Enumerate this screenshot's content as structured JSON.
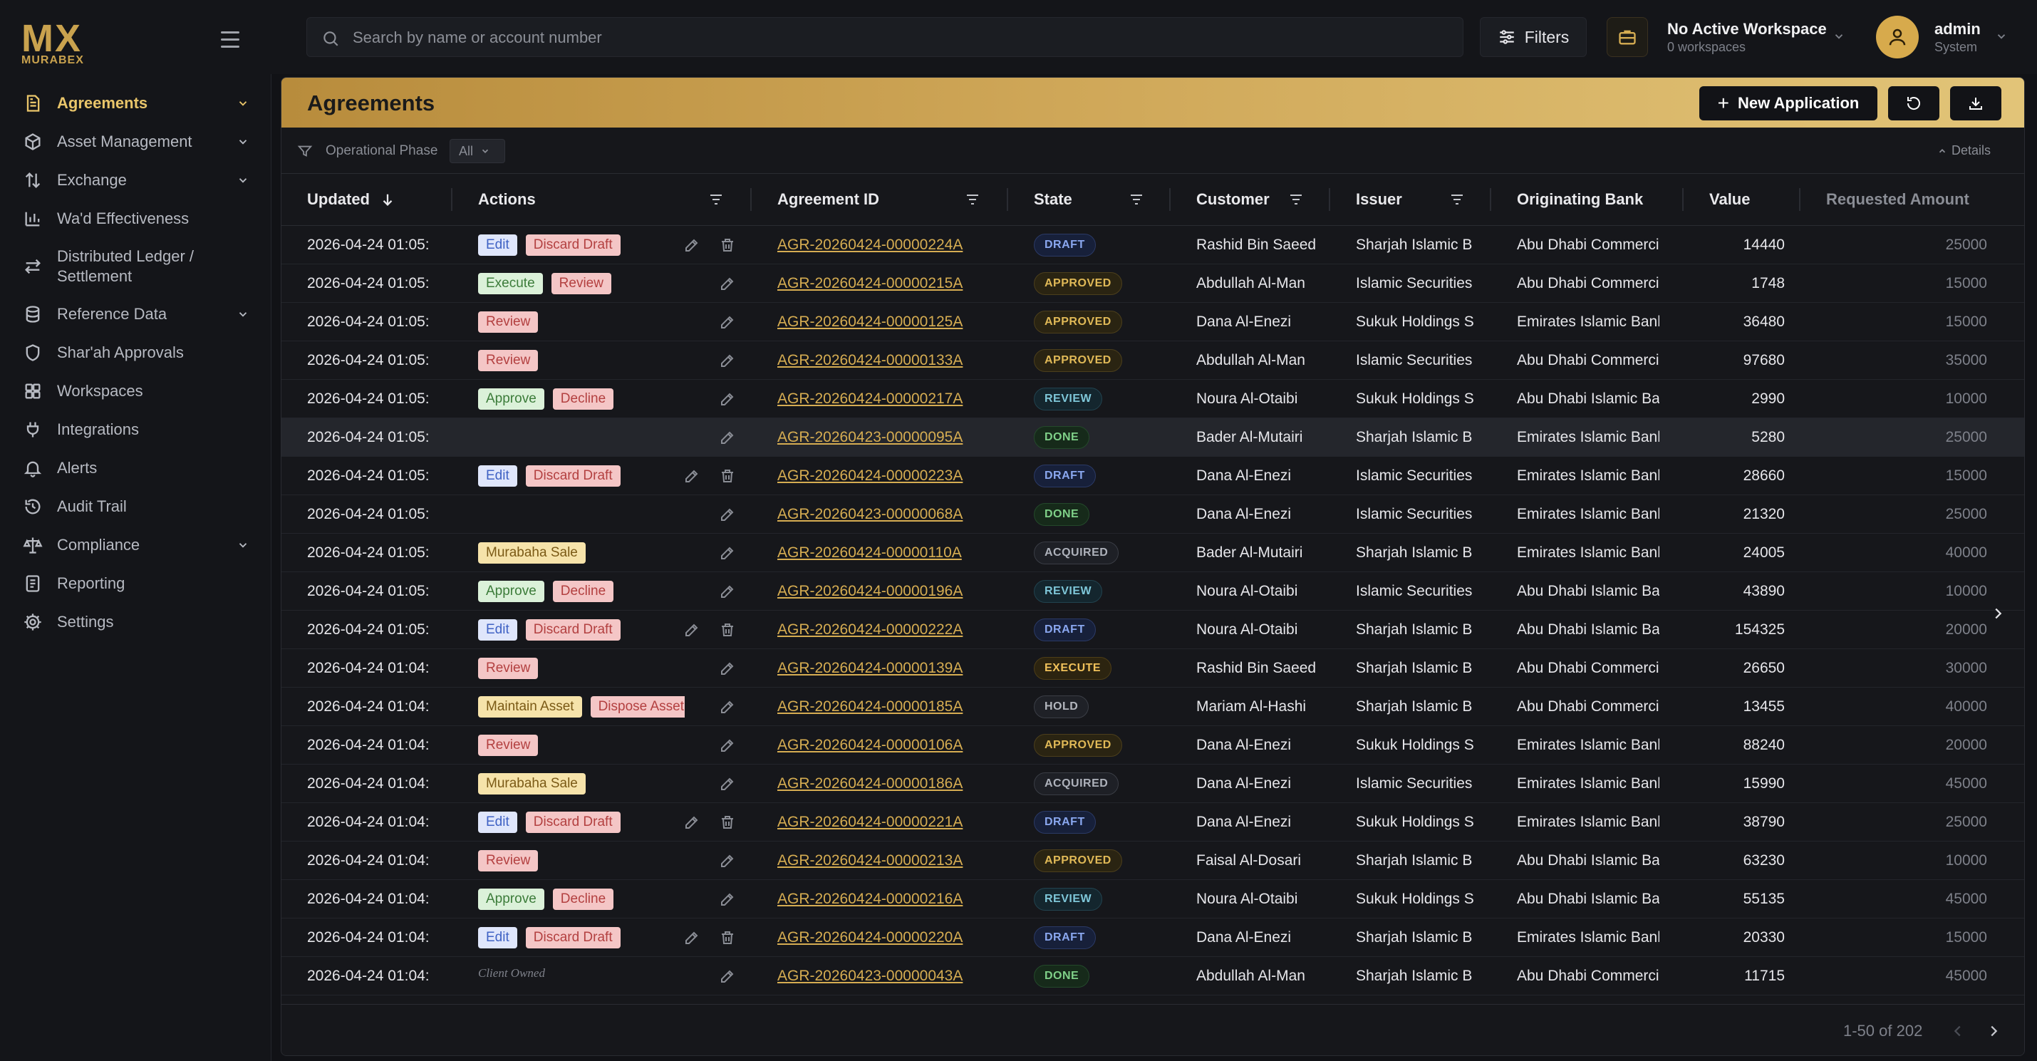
{
  "brand": {
    "logo_main": "MX",
    "logo_sub": "MURABEX"
  },
  "sidebar": {
    "items": [
      {
        "label": "Agreements",
        "icon": "document-icon",
        "active": true,
        "chevron": true
      },
      {
        "label": "Asset Management",
        "icon": "cube-icon",
        "chevron": true
      },
      {
        "label": "Exchange",
        "icon": "swap-vertical-icon",
        "chevron": true
      },
      {
        "label": "Wa'd Effectiveness",
        "icon": "bar-chart-icon"
      },
      {
        "label": "Distributed Ledger / Settlement",
        "icon": "arrows-left-right-icon",
        "tall": true
      },
      {
        "label": "Reference Data",
        "icon": "database-icon",
        "chevron": true
      },
      {
        "label": "Shar'ah Approvals",
        "icon": "shield-icon"
      },
      {
        "label": "Workspaces",
        "icon": "grid-icon"
      },
      {
        "label": "Integrations",
        "icon": "plug-icon"
      },
      {
        "label": "Alerts",
        "icon": "bell-icon"
      },
      {
        "label": "Audit Trail",
        "icon": "history-icon"
      },
      {
        "label": "Compliance",
        "icon": "scale-icon",
        "chevron": true
      },
      {
        "label": "Reporting",
        "icon": "report-icon"
      },
      {
        "label": "Settings",
        "icon": "gear-icon"
      }
    ]
  },
  "topbar": {
    "search_placeholder": "Search by name or account number",
    "filters_label": "Filters",
    "workspace_title": "No Active Workspace",
    "workspace_sub": "0 workspaces",
    "user_name": "admin",
    "user_role": "System"
  },
  "panel": {
    "title": "Agreements",
    "new_button": "New Application",
    "filter_label": "Operational Phase",
    "filter_value": "All",
    "details_label": "Details"
  },
  "columns": {
    "updated": "Updated",
    "actions": "Actions",
    "agreement_id": "Agreement ID",
    "state": "State",
    "customer": "Customer",
    "issuer": "Issuer",
    "bank": "Originating Bank",
    "value": "Value",
    "requested": "Requested Amount"
  },
  "rows": [
    {
      "updated": "2026-04-24 01:05:",
      "actions": [
        {
          "label": "Edit",
          "color": "blue"
        },
        {
          "label": "Discard Draft",
          "color": "red"
        }
      ],
      "icons": [
        "edit",
        "trash"
      ],
      "id": "AGR-20260424-00000224A",
      "state": "DRAFT",
      "customer": "Rashid Bin Saeed",
      "issuer": "Sharjah Islamic B",
      "bank": "Abu Dhabi Commerci",
      "value": "14440",
      "requested": "25000"
    },
    {
      "updated": "2026-04-24 01:05:",
      "actions": [
        {
          "label": "Execute",
          "color": "green"
        },
        {
          "label": "Review",
          "color": "red"
        }
      ],
      "icons": [
        "edit"
      ],
      "id": "AGR-20260424-00000215A",
      "state": "APPROVED",
      "customer": "Abdullah Al-Man",
      "issuer": "Islamic Securities",
      "bank": "Abu Dhabi Commerci",
      "value": "1748",
      "requested": "15000"
    },
    {
      "updated": "2026-04-24 01:05:",
      "actions": [
        {
          "label": "Review",
          "color": "red"
        }
      ],
      "icons": [
        "edit"
      ],
      "id": "AGR-20260424-00000125A",
      "state": "APPROVED",
      "customer": "Dana Al-Enezi",
      "issuer": "Sukuk Holdings S",
      "bank": "Emirates Islamic Bank",
      "value": "36480",
      "requested": "15000"
    },
    {
      "updated": "2026-04-24 01:05:",
      "actions": [
        {
          "label": "Review",
          "color": "red"
        }
      ],
      "icons": [
        "edit"
      ],
      "id": "AGR-20260424-00000133A",
      "state": "APPROVED",
      "customer": "Abdullah Al-Man",
      "issuer": "Islamic Securities",
      "bank": "Abu Dhabi Commerci",
      "value": "97680",
      "requested": "35000"
    },
    {
      "updated": "2026-04-24 01:05:",
      "actions": [
        {
          "label": "Approve",
          "color": "green"
        },
        {
          "label": "Decline",
          "color": "red"
        }
      ],
      "icons": [
        "edit"
      ],
      "id": "AGR-20260424-00000217A",
      "state": "REVIEW",
      "customer": "Noura Al-Otaibi",
      "issuer": "Sukuk Holdings S",
      "bank": "Abu Dhabi Islamic Ba",
      "value": "2990",
      "requested": "10000"
    },
    {
      "updated": "2026-04-24 01:05:",
      "actions": [],
      "icons": [
        "edit"
      ],
      "id": "AGR-20260423-00000095A",
      "state": "DONE",
      "customer": "Bader Al-Mutairi",
      "issuer": "Sharjah Islamic B",
      "bank": "Emirates Islamic Bank",
      "value": "5280",
      "requested": "25000",
      "highlight": true
    },
    {
      "updated": "2026-04-24 01:05:",
      "actions": [
        {
          "label": "Edit",
          "color": "blue"
        },
        {
          "label": "Discard Draft",
          "color": "red"
        }
      ],
      "icons": [
        "edit",
        "trash"
      ],
      "id": "AGR-20260424-00000223A",
      "state": "DRAFT",
      "customer": "Dana Al-Enezi",
      "issuer": "Islamic Securities",
      "bank": "Emirates Islamic Bank",
      "value": "28660",
      "requested": "15000"
    },
    {
      "updated": "2026-04-24 01:05:",
      "actions": [],
      "icons": [
        "edit"
      ],
      "id": "AGR-20260423-00000068A",
      "state": "DONE",
      "customer": "Dana Al-Enezi",
      "issuer": "Islamic Securities",
      "bank": "Emirates Islamic Bank",
      "value": "21320",
      "requested": "25000"
    },
    {
      "updated": "2026-04-24 01:05:",
      "actions": [
        {
          "label": "Murabaha Sale",
          "color": "yellow"
        }
      ],
      "icons": [
        "edit"
      ],
      "id": "AGR-20260424-00000110A",
      "state": "ACQUIRED",
      "customer": "Bader Al-Mutairi",
      "issuer": "Sharjah Islamic B",
      "bank": "Emirates Islamic Bank",
      "value": "24005",
      "requested": "40000"
    },
    {
      "updated": "2026-04-24 01:05:",
      "actions": [
        {
          "label": "Approve",
          "color": "green"
        },
        {
          "label": "Decline",
          "color": "red"
        }
      ],
      "icons": [
        "edit"
      ],
      "id": "AGR-20260424-00000196A",
      "state": "REVIEW",
      "customer": "Noura Al-Otaibi",
      "issuer": "Islamic Securities",
      "bank": "Abu Dhabi Islamic Ba",
      "value": "43890",
      "requested": "10000"
    },
    {
      "updated": "2026-04-24 01:05:",
      "actions": [
        {
          "label": "Edit",
          "color": "blue"
        },
        {
          "label": "Discard Draft",
          "color": "red"
        }
      ],
      "icons": [
        "edit",
        "trash"
      ],
      "id": "AGR-20260424-00000222A",
      "state": "DRAFT",
      "customer": "Noura Al-Otaibi",
      "issuer": "Sharjah Islamic B",
      "bank": "Abu Dhabi Islamic Ba",
      "value": "154325",
      "requested": "20000"
    },
    {
      "updated": "2026-04-24 01:04:",
      "actions": [
        {
          "label": "Review",
          "color": "red"
        }
      ],
      "icons": [
        "edit"
      ],
      "id": "AGR-20260424-00000139A",
      "state": "EXECUTE",
      "customer": "Rashid Bin Saeed",
      "issuer": "Sharjah Islamic B",
      "bank": "Abu Dhabi Commerci",
      "value": "26650",
      "requested": "30000"
    },
    {
      "updated": "2026-04-24 01:04:",
      "actions": [
        {
          "label": "Maintain Asset",
          "color": "yellow"
        },
        {
          "label": "Dispose Asset",
          "color": "red"
        }
      ],
      "icons": [
        "edit"
      ],
      "id": "AGR-20260424-00000185A",
      "state": "HOLD",
      "customer": "Mariam Al-Hashi",
      "issuer": "Sharjah Islamic B",
      "bank": "Abu Dhabi Commerci",
      "value": "13455",
      "requested": "40000"
    },
    {
      "updated": "2026-04-24 01:04:",
      "actions": [
        {
          "label": "Review",
          "color": "red"
        }
      ],
      "icons": [
        "edit"
      ],
      "id": "AGR-20260424-00000106A",
      "state": "APPROVED",
      "customer": "Dana Al-Enezi",
      "issuer": "Sukuk Holdings S",
      "bank": "Emirates Islamic Bank",
      "value": "88240",
      "requested": "20000"
    },
    {
      "updated": "2026-04-24 01:04:",
      "actions": [
        {
          "label": "Murabaha Sale",
          "color": "yellow"
        }
      ],
      "icons": [
        "edit"
      ],
      "id": "AGR-20260424-00000186A",
      "state": "ACQUIRED",
      "customer": "Dana Al-Enezi",
      "issuer": "Islamic Securities",
      "bank": "Emirates Islamic Bank",
      "value": "15990",
      "requested": "45000"
    },
    {
      "updated": "2026-04-24 01:04:",
      "actions": [
        {
          "label": "Edit",
          "color": "blue"
        },
        {
          "label": "Discard Draft",
          "color": "red"
        }
      ],
      "icons": [
        "edit",
        "trash"
      ],
      "id": "AGR-20260424-00000221A",
      "state": "DRAFT",
      "customer": "Dana Al-Enezi",
      "issuer": "Sukuk Holdings S",
      "bank": "Emirates Islamic Bank",
      "value": "38790",
      "requested": "25000"
    },
    {
      "updated": "2026-04-24 01:04:",
      "actions": [
        {
          "label": "Review",
          "color": "red"
        }
      ],
      "icons": [
        "edit"
      ],
      "id": "AGR-20260424-00000213A",
      "state": "APPROVED",
      "customer": "Faisal Al-Dosari",
      "issuer": "Sharjah Islamic B",
      "bank": "Abu Dhabi Islamic Ba",
      "value": "63230",
      "requested": "10000"
    },
    {
      "updated": "2026-04-24 01:04:",
      "actions": [
        {
          "label": "Approve",
          "color": "green"
        },
        {
          "label": "Decline",
          "color": "red"
        }
      ],
      "icons": [
        "edit"
      ],
      "id": "AGR-20260424-00000216A",
      "state": "REVIEW",
      "customer": "Noura Al-Otaibi",
      "issuer": "Sukuk Holdings S",
      "bank": "Abu Dhabi Islamic Ba",
      "value": "55135",
      "requested": "45000"
    },
    {
      "updated": "2026-04-24 01:04:",
      "actions": [
        {
          "label": "Edit",
          "color": "blue"
        },
        {
          "label": "Discard Draft",
          "color": "red"
        }
      ],
      "icons": [
        "edit",
        "trash"
      ],
      "id": "AGR-20260424-00000220A",
      "state": "DRAFT",
      "customer": "Dana Al-Enezi",
      "issuer": "Sharjah Islamic B",
      "bank": "Emirates Islamic Bank",
      "value": "20330",
      "requested": "15000"
    },
    {
      "updated": "2026-04-24 01:04:",
      "actions": [],
      "note": "Client Owned",
      "icons": [
        "edit"
      ],
      "id": "AGR-20260423-00000043A",
      "state": "DONE",
      "customer": "Abdullah Al-Man",
      "issuer": "Sharjah Islamic B",
      "bank": "Abu Dhabi Commerci",
      "value": "11715",
      "requested": "45000"
    }
  ],
  "pagination": {
    "label": "1-50 of 202"
  }
}
